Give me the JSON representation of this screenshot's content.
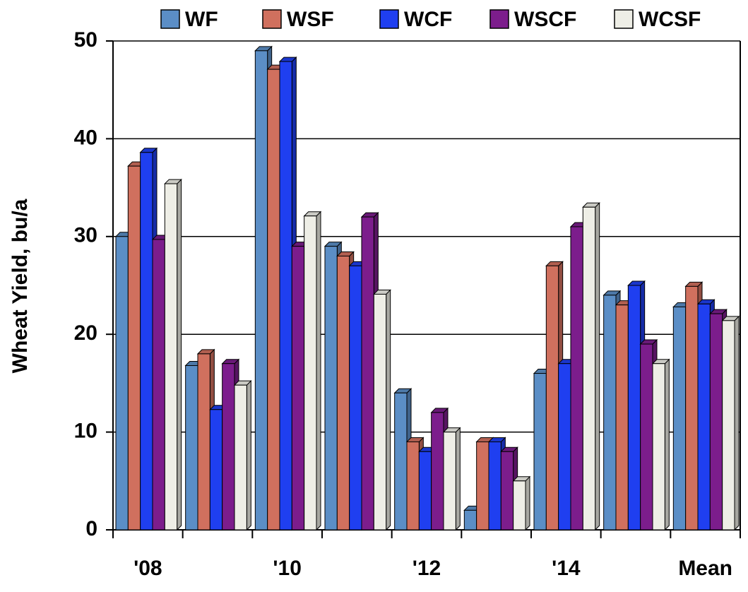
{
  "chart_data": {
    "type": "bar",
    "y_label": "Wheat Yield, bu/a",
    "categories": [
      "'08",
      null,
      "'10",
      null,
      "'12",
      null,
      "'14",
      null,
      "Mean"
    ],
    "series": [
      {
        "name": "WF",
        "color": "#5b8ec6",
        "values": [
          30,
          16.8,
          49,
          29,
          14,
          2,
          16,
          24,
          22.8
        ]
      },
      {
        "name": "WSF",
        "color": "#d0705e",
        "values": [
          37.2,
          18,
          47.1,
          28,
          9,
          9,
          27,
          23,
          24.9
        ]
      },
      {
        "name": "WCF",
        "color": "#1f3ff0",
        "values": [
          38.6,
          12.3,
          47.9,
          27,
          8,
          9,
          17,
          25,
          23.1
        ]
      },
      {
        "name": "WSCF",
        "color": "#7c1d8c",
        "values": [
          29.7,
          17,
          29,
          32,
          12,
          8,
          31,
          19,
          22.1
        ]
      },
      {
        "name": "WCSF",
        "color": "#eeeee6",
        "values": [
          35.4,
          14.8,
          32.1,
          24.1,
          10,
          5,
          33,
          17,
          21.4
        ]
      }
    ],
    "ylim": [
      0,
      50
    ],
    "yticks": [
      0,
      10,
      20,
      30,
      40,
      50
    ],
    "grid": true
  }
}
